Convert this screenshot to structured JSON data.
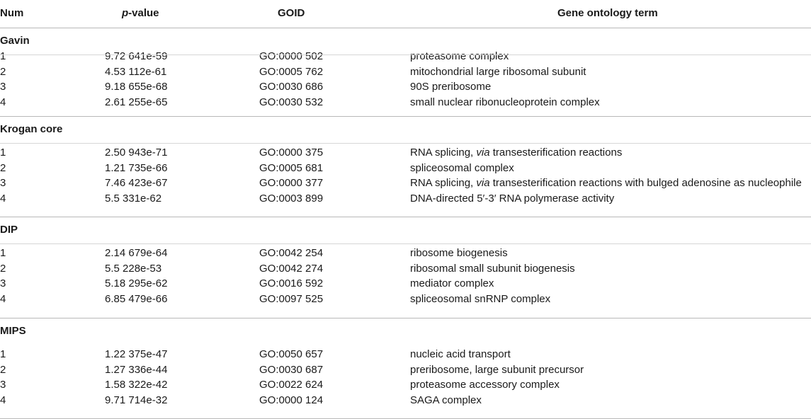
{
  "headers": {
    "num": "Num",
    "pvalue_italic": "p",
    "pvalue_rest": "-value",
    "goid": "GOID",
    "term": "Gene ontology term"
  },
  "sections": [
    {
      "name": "Gavin",
      "rows": [
        {
          "num": "1",
          "p": "9.72 641e-59",
          "goid": "GO:0000 502",
          "term": [
            "proteasome complex"
          ]
        },
        {
          "num": "2",
          "p": "4.53 112e-61",
          "goid": "GO:0005 762",
          "term": [
            "mitochondrial large ribosomal subunit"
          ]
        },
        {
          "num": "3",
          "p": "9.18 655e-68",
          "goid": "GO:0030 686",
          "term": [
            "90S preribosome"
          ]
        },
        {
          "num": "4",
          "p": "2.61 255e-65",
          "goid": "GO:0030 532",
          "term": [
            "small nuclear ribonucleoprotein complex"
          ]
        }
      ]
    },
    {
      "name": "Krogan core",
      "rows": [
        {
          "num": "1",
          "p": "2.50 943e-71",
          "goid": "GO:0000 375",
          "term": [
            "RNA splicing, ",
            "via",
            " transesterification reactions"
          ]
        },
        {
          "num": "2",
          "p": "1.21 735e-66",
          "goid": "GO:0005 681",
          "term": [
            "spliceosomal complex"
          ]
        },
        {
          "num": "3",
          "p": "7.46 423e-67",
          "goid": "GO:0000 377",
          "term": [
            "RNA splicing, ",
            "via",
            " transesterification reactions with bulged adenosine as nucleophile"
          ]
        },
        {
          "num": "4",
          "p": "5.5 331e-62",
          "goid": "GO:0003 899",
          "term": [
            "DNA-directed 5′-3′ RNA polymerase activity"
          ]
        }
      ]
    },
    {
      "name": "DIP",
      "rows": [
        {
          "num": "1",
          "p": "2.14 679e-64",
          "goid": "GO:0042 254",
          "term": [
            "ribosome biogenesis"
          ]
        },
        {
          "num": "2",
          "p": "5.5 228e-53",
          "goid": "GO:0042 274",
          "term": [
            "ribosomal small subunit biogenesis"
          ]
        },
        {
          "num": "3",
          "p": "5.18 295e-62",
          "goid": "GO:0016 592",
          "term": [
            "mediator complex"
          ]
        },
        {
          "num": "4",
          "p": "6.85 479e-66",
          "goid": "GO:0097 525",
          "term": [
            "spliceosomal snRNP complex"
          ]
        }
      ]
    },
    {
      "name": "MIPS",
      "rows": [
        {
          "num": "1",
          "p": "1.22 375e-47",
          "goid": "GO:0050 657",
          "term": [
            "nucleic acid transport"
          ]
        },
        {
          "num": "2",
          "p": "1.27 336e-44",
          "goid": "GO:0030 687",
          "term": [
            "preribosome, large subunit precursor"
          ]
        },
        {
          "num": "3",
          "p": "1.58 322e-42",
          "goid": "GO:0022 624",
          "term": [
            "proteasome accessory complex"
          ]
        },
        {
          "num": "4",
          "p": "9.71 714e-32",
          "goid": "GO:0000 124",
          "term": [
            "SAGA complex"
          ]
        }
      ]
    }
  ]
}
